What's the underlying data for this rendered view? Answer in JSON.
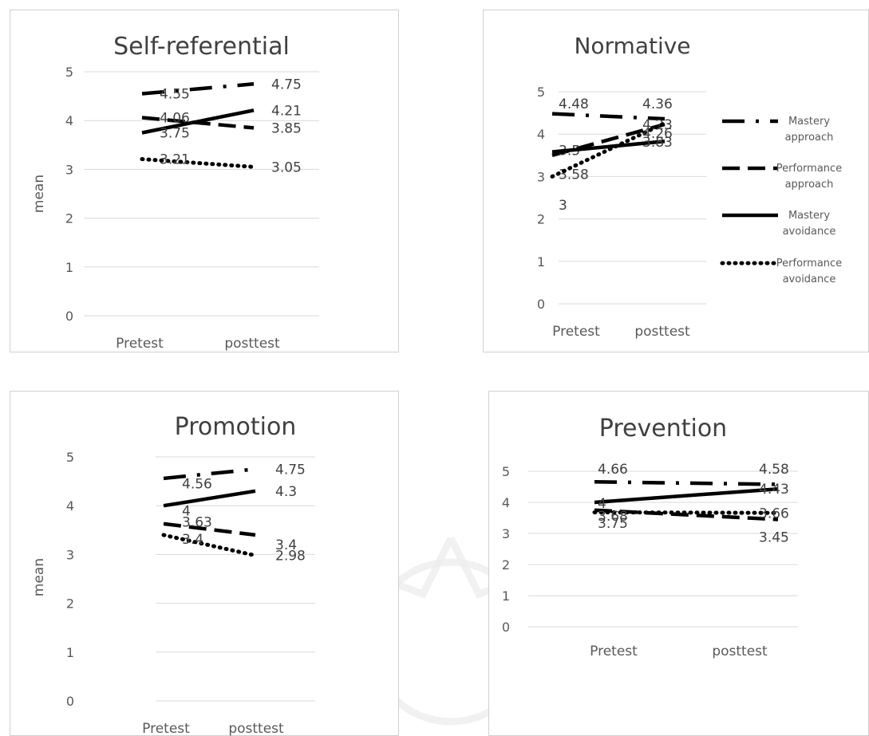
{
  "styles": {
    "Mastery approach": {
      "dash": "28 14 4 14",
      "width": 4.5
    },
    "Performance approach": {
      "dash": "22 10",
      "width": 4.5
    },
    "Mastery avoidance": {
      "dash": "",
      "width": 4.5
    },
    "Performance avoidance": {
      "dash": "1 7",
      "width": 5
    }
  },
  "legend": {
    "items": [
      "Mastery approach",
      "Performance approach",
      "Mastery avoidance",
      "Performance avoidance"
    ],
    "lines": [
      [
        "Mastery",
        "approach"
      ],
      [
        "Performance",
        "approach"
      ],
      [
        "Mastery",
        "avoidance"
      ],
      [
        "Performance",
        "avoidance"
      ]
    ]
  },
  "chart_data": [
    {
      "type": "line",
      "title": "Self-referential",
      "ylabel": "mean",
      "categories": [
        "Pretest",
        "posttest"
      ],
      "ylim": [
        0,
        5
      ],
      "yticks": [
        "0",
        "1",
        "2",
        "3",
        "4",
        "5"
      ],
      "series": [
        {
          "name": "Mastery approach",
          "values": [
            4.55,
            4.75
          ],
          "labels": [
            "4.55",
            "4.75"
          ]
        },
        {
          "name": "Performance approach",
          "values": [
            4.06,
            3.85
          ],
          "labels": [
            "4.06",
            "3.85"
          ]
        },
        {
          "name": "Mastery avoidance",
          "values": [
            3.75,
            4.21
          ],
          "labels": [
            "3.75",
            "4.21"
          ]
        },
        {
          "name": "Performance avoidance",
          "values": [
            3.21,
            3.05
          ],
          "labels": [
            "3.21",
            "3.05"
          ]
        }
      ]
    },
    {
      "type": "line",
      "title": "Normative",
      "ylabel": "",
      "categories": [
        "Pretest",
        "posttest"
      ],
      "ylim": [
        0,
        5
      ],
      "yticks": [
        "0",
        "1",
        "2",
        "3",
        "4",
        "5"
      ],
      "legend": "right",
      "series": [
        {
          "name": "Mastery approach",
          "values": [
            4.48,
            4.36
          ],
          "labels": [
            "4.48",
            "4.36"
          ]
        },
        {
          "name": "Performance approach",
          "values": [
            3.5,
            4.23
          ],
          "labels": [
            "3.5",
            "4.23"
          ]
        },
        {
          "name": "Mastery avoidance",
          "values": [
            3.58,
            3.83
          ],
          "labels": [
            "3.58",
            "3.83"
          ]
        },
        {
          "name": "Performance avoidance",
          "values": [
            3,
            4.26
          ],
          "labels": [
            "3",
            "4.26"
          ]
        }
      ]
    },
    {
      "type": "line",
      "title": "Promotion",
      "ylabel": "mean",
      "categories": [
        "Pretest",
        "posttest"
      ],
      "ylim": [
        0,
        5
      ],
      "yticks": [
        "0",
        "1",
        "2",
        "3",
        "4",
        "5"
      ],
      "series": [
        {
          "name": "Mastery approach",
          "values": [
            4.56,
            4.75
          ],
          "labels": [
            "4.56",
            "4.75"
          ]
        },
        {
          "name": "Performance approach",
          "values": [
            3.63,
            3.4
          ],
          "labels": [
            "3.63",
            "3.4"
          ]
        },
        {
          "name": "Mastery avoidance",
          "values": [
            4,
            4.3
          ],
          "labels": [
            "4",
            "4.3"
          ]
        },
        {
          "name": "Performance avoidance",
          "values": [
            3.4,
            2.98
          ],
          "labels": [
            "3.4",
            "2.98"
          ]
        }
      ]
    },
    {
      "type": "line",
      "title": "Prevention",
      "ylabel": "",
      "categories": [
        "Pretest",
        "posttest"
      ],
      "ylim": [
        0,
        5
      ],
      "yticks": [
        "0",
        "1",
        "2",
        "3",
        "4",
        "5"
      ],
      "series": [
        {
          "name": "Mastery approach",
          "values": [
            4.66,
            4.58
          ],
          "labels": [
            "4.66",
            "4.58"
          ]
        },
        {
          "name": "Performance approach",
          "values": [
            3.75,
            3.45
          ],
          "labels": [
            "3.75",
            "3.45"
          ]
        },
        {
          "name": "Mastery avoidance",
          "values": [
            4,
            4.43
          ],
          "labels": [
            "4",
            "4.43"
          ]
        },
        {
          "name": "Performance avoidance",
          "values": [
            3.68,
            3.66
          ],
          "labels": [
            "3.68",
            "3.66"
          ]
        }
      ]
    }
  ]
}
